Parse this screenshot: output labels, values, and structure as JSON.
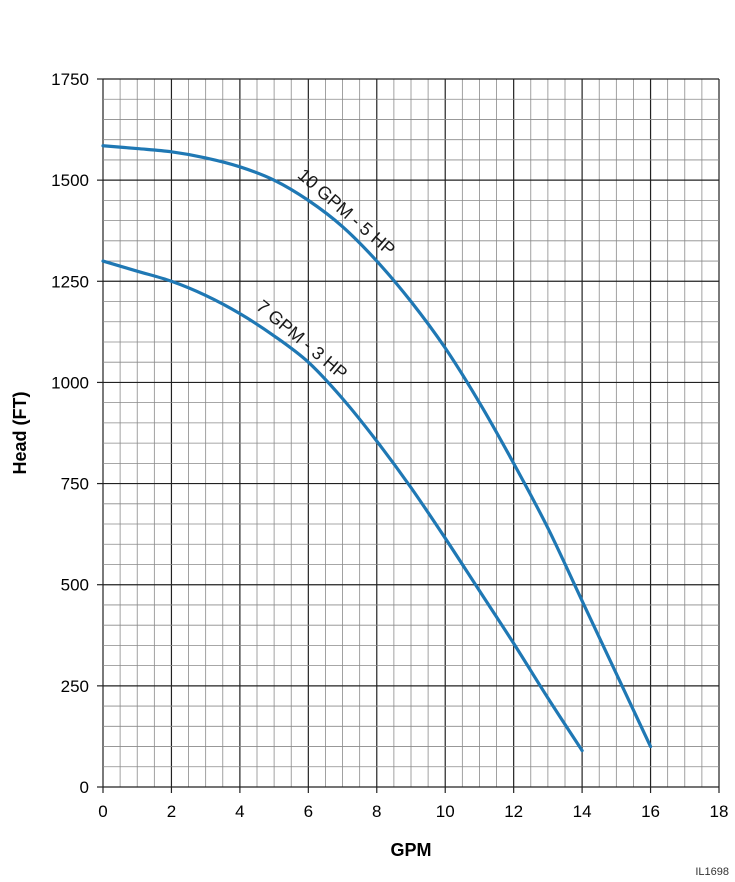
{
  "figure_id": "IL1698",
  "chart_data": {
    "type": "line",
    "title": "",
    "xlabel": "GPM",
    "ylabel": "Head (FT)",
    "xlim": [
      0,
      18
    ],
    "ylim": [
      0,
      1750
    ],
    "x_ticks": [
      0,
      2,
      4,
      6,
      8,
      10,
      12,
      14,
      16,
      18
    ],
    "y_ticks": [
      0,
      250,
      500,
      750,
      1000,
      1250,
      1500,
      1750
    ],
    "grid": true,
    "series_color": "#1f78b4",
    "series": [
      {
        "name": "10 GPM - 5 HP",
        "x": [
          0,
          1,
          2,
          3,
          4,
          5,
          6,
          7,
          8,
          9,
          10,
          11,
          12,
          13,
          14,
          15,
          16
        ],
        "y": [
          1585,
          1578,
          1570,
          1555,
          1533,
          1500,
          1450,
          1385,
          1300,
          1200,
          1085,
          950,
          800,
          640,
          460,
          280,
          100
        ]
      },
      {
        "name": "7 GPM - 3 HP",
        "x": [
          0,
          1,
          2,
          3,
          4,
          5,
          6,
          7,
          8,
          9,
          10,
          11,
          12,
          13,
          14
        ],
        "y": [
          1300,
          1275,
          1250,
          1215,
          1170,
          1115,
          1050,
          960,
          855,
          740,
          615,
          485,
          355,
          220,
          90
        ]
      }
    ]
  }
}
